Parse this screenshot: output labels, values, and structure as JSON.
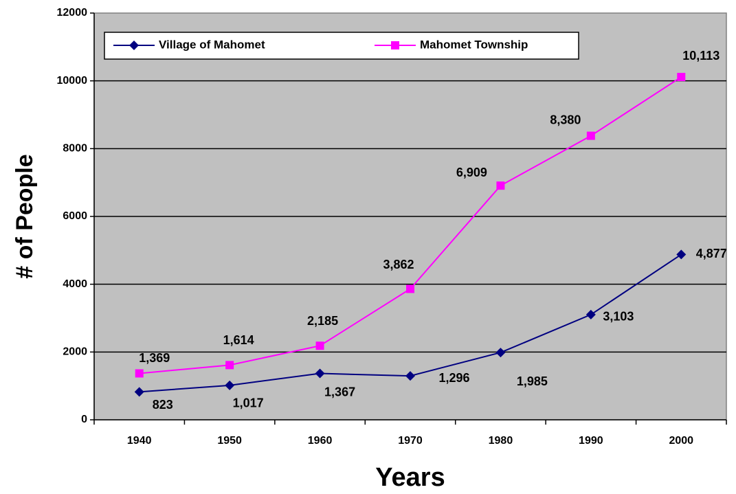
{
  "chart_data": {
    "type": "line",
    "xlabel": "Years",
    "ylabel": "# of People",
    "categories": [
      "1940",
      "1950",
      "1960",
      "1970",
      "1980",
      "1990",
      "2000"
    ],
    "series": [
      {
        "name": "Village of Mahomet",
        "color": "#000080",
        "marker": "diamond",
        "values": [
          823,
          1017,
          1367,
          1296,
          1985,
          3103,
          4877
        ],
        "value_labels": [
          "823",
          "1,017",
          "1,367",
          "1,296",
          "1,985",
          "3,103",
          "4,877"
        ]
      },
      {
        "name": "Mahomet Township",
        "color": "#ff00ff",
        "marker": "square",
        "values": [
          1369,
          1614,
          2185,
          3862,
          6909,
          8380,
          10113
        ],
        "value_labels": [
          "1,369",
          "1,614",
          "2,185",
          "3,862",
          "6,909",
          "8,380",
          "10,113"
        ]
      }
    ],
    "ylim": [
      0,
      12000
    ],
    "yticks": [
      0,
      2000,
      4000,
      6000,
      8000,
      10000,
      12000
    ],
    "grid": true,
    "plot_background": "#c0c0c0",
    "legend": "top"
  }
}
